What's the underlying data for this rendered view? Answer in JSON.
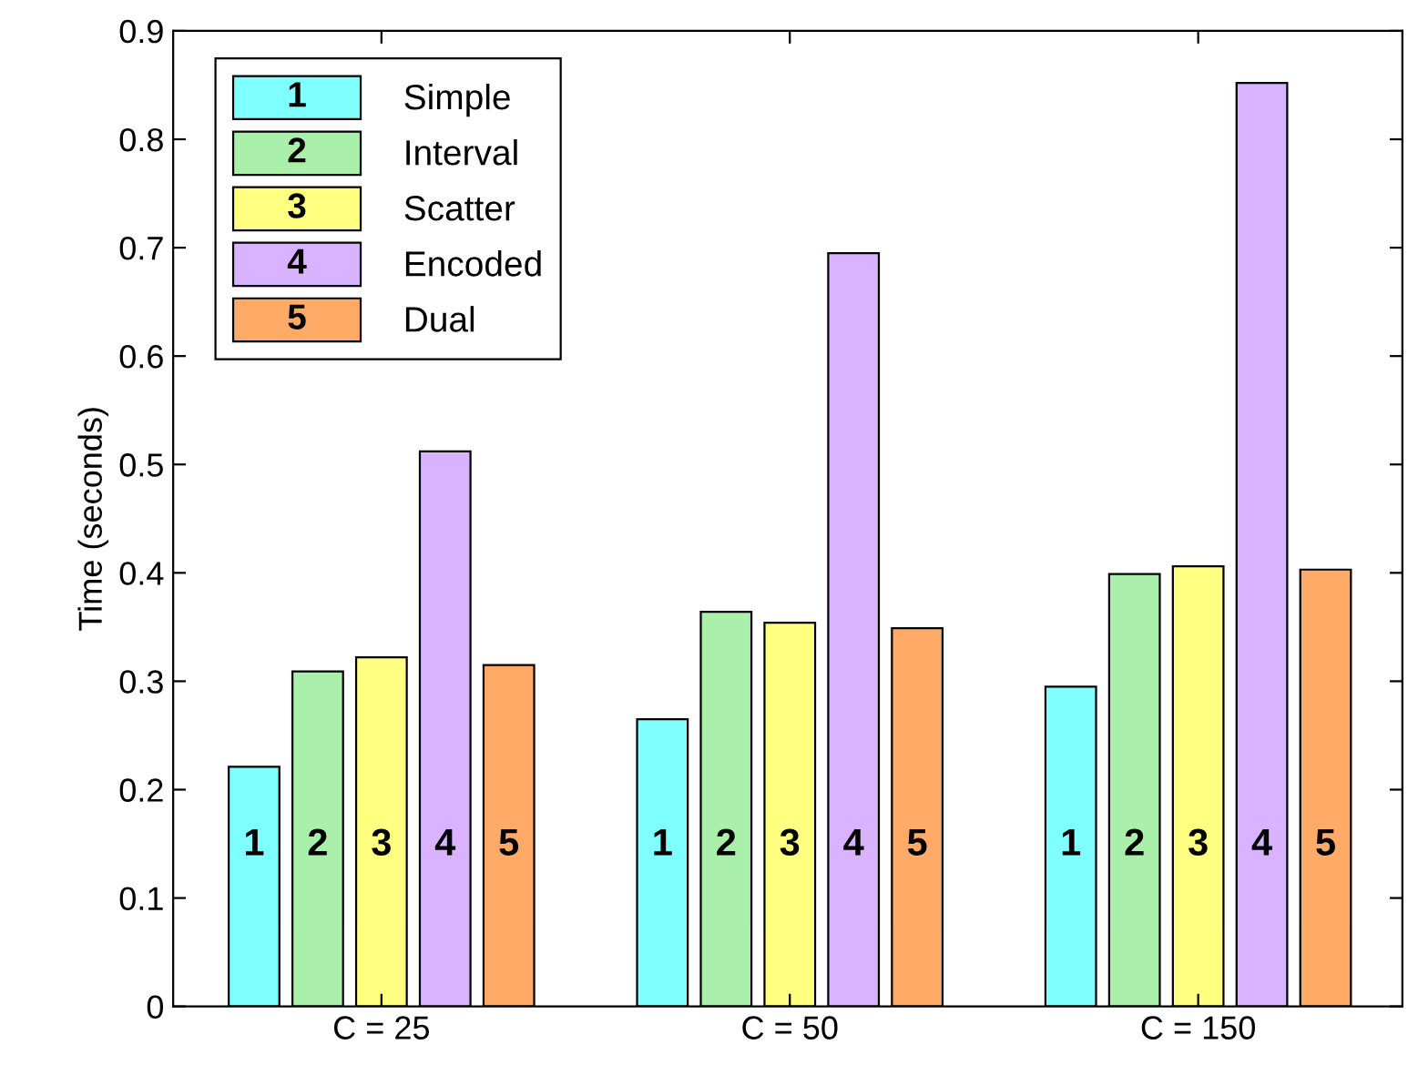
{
  "chart_data": {
    "type": "bar",
    "ylabel": "Time (seconds)",
    "categories": [
      "C = 25",
      "C = 50",
      "C = 150"
    ],
    "ylim": [
      0,
      0.9
    ],
    "yticks": [
      0,
      0.1,
      0.2,
      0.3,
      0.4,
      0.5,
      0.6,
      0.7,
      0.8,
      0.9
    ],
    "grid": false,
    "legend": "top left",
    "annotations": [
      "1",
      "2",
      "3",
      "4",
      "5"
    ],
    "series": [
      {
        "name": "Simple",
        "color": "#80ffff",
        "values": [
          0.221,
          0.265,
          0.295
        ]
      },
      {
        "name": "Interval",
        "color": "#aaf0aa",
        "values": [
          0.309,
          0.364,
          0.399
        ]
      },
      {
        "name": "Scatter",
        "color": "#ffff80",
        "values": [
          0.322,
          0.354,
          0.406
        ]
      },
      {
        "name": "Encoded",
        "color": "#d9b3ff",
        "values": [
          0.512,
          0.695,
          0.852
        ]
      },
      {
        "name": "Dual",
        "color": "#ffaa66",
        "values": [
          0.315,
          0.349,
          0.403
        ]
      }
    ]
  }
}
